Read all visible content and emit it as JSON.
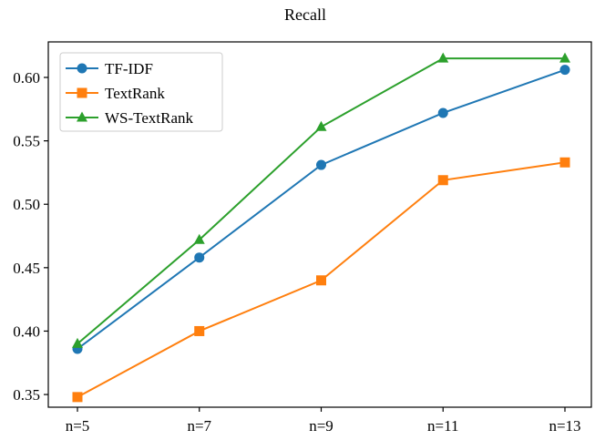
{
  "chart_data": {
    "type": "line",
    "title": "Recall",
    "xlabel": "",
    "ylabel": "",
    "categories": [
      "n=5",
      "n=7",
      "n=9",
      "n=11",
      "n=13"
    ],
    "ylim": [
      0.34,
      0.628
    ],
    "yticks": [
      "0.35",
      "0.40",
      "0.45",
      "0.50",
      "0.55",
      "0.60"
    ],
    "grid": false,
    "legend_position": "top-left",
    "series": [
      {
        "name": "TF-IDF",
        "color": "#1f77b4",
        "marker": "circle",
        "values": [
          0.386,
          0.458,
          0.531,
          0.572,
          0.606
        ]
      },
      {
        "name": "TextRank",
        "color": "#ff7f0e",
        "marker": "square",
        "values": [
          0.348,
          0.4,
          0.44,
          0.519,
          0.533
        ]
      },
      {
        "name": "WS-TextRank",
        "color": "#2ca02c",
        "marker": "triangle",
        "values": [
          0.39,
          0.472,
          0.561,
          0.615,
          0.615
        ]
      }
    ]
  }
}
